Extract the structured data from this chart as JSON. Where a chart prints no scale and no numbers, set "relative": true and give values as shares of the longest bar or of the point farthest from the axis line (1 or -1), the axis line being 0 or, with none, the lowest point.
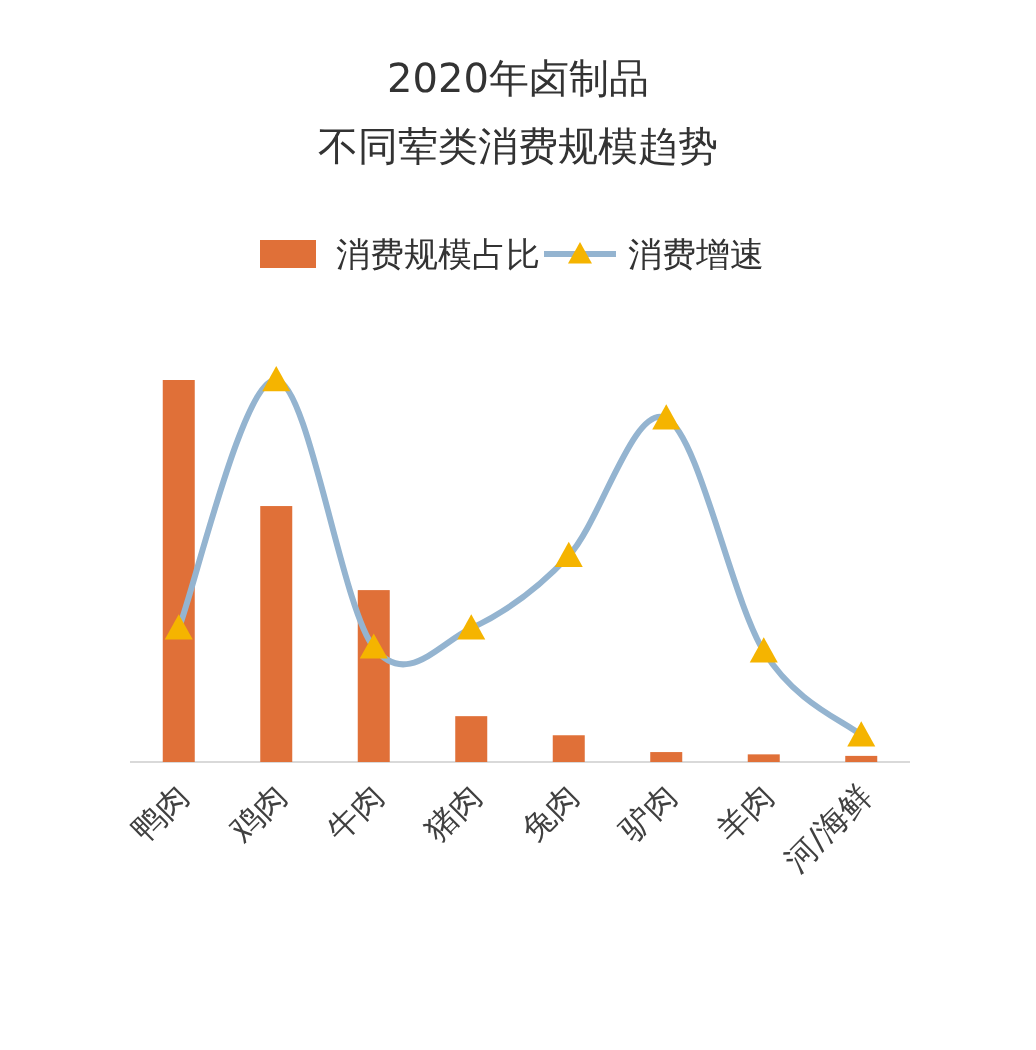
{
  "chart_data": {
    "type": "bar",
    "title": "2020年卤制品不同荤类消费规模趋势",
    "categories": [
      "鸭肉",
      "鸡肉",
      "牛肉",
      "猪肉",
      "兔肉",
      "驴肉",
      "羊肉",
      "河/海鲜"
    ],
    "relative": true,
    "legend": "top",
    "marker": "triangle",
    "series": [
      {
        "name": "消费规模占比",
        "color": "#e07038",
        "values": [
          1,
          0.67,
          0.45,
          0.12,
          0.07,
          0.026,
          0.02,
          0.016
        ]
      },
      {
        "name": "消费增速",
        "type": "line",
        "color": "#94b4d0",
        "colors": [
          "#f5b400",
          "#f5b400",
          "#f5b400",
          "#f5b400",
          "#f5b400",
          "#f5b400",
          "#f5b400",
          "#f5b400"
        ],
        "values": [
          0.35,
          1,
          0.3,
          0.35,
          0.54,
          0.9,
          0.29,
          0.07
        ]
      }
    ]
  }
}
